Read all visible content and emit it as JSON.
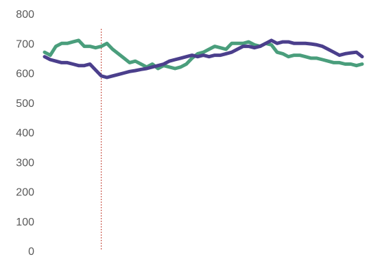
{
  "chart_data": {
    "type": "line",
    "title": "",
    "xlabel": "",
    "ylabel": "",
    "ylim": [
      0,
      800
    ],
    "yticks": [
      "0",
      "100",
      "200",
      "300",
      "400",
      "500",
      "600",
      "700",
      "800"
    ],
    "grid": false,
    "legend": "none",
    "reference_line": {
      "x_index": 10,
      "color": "#c0392b",
      "style": "dotted"
    },
    "series": [
      {
        "color": "#4a9e7c",
        "values": [
          670,
          660,
          690,
          700,
          700,
          705,
          710,
          690,
          690,
          685,
          690,
          700,
          680,
          665,
          650,
          635,
          640,
          630,
          620,
          630,
          615,
          625,
          620,
          615,
          620,
          630,
          650,
          665,
          670,
          680,
          690,
          685,
          680,
          700,
          700,
          700,
          705,
          695,
          690,
          700,
          695,
          670,
          665,
          655,
          660,
          660,
          655,
          650,
          650,
          645,
          640,
          635,
          635,
          630,
          630,
          625,
          630
        ]
      },
      {
        "color": "#4b3f8c",
        "values": [
          655,
          645,
          640,
          635,
          635,
          630,
          625,
          625,
          630,
          610,
          590,
          585,
          590,
          595,
          600,
          605,
          608,
          612,
          615,
          620,
          625,
          630,
          640,
          645,
          650,
          655,
          660,
          655,
          660,
          655,
          660,
          660,
          665,
          670,
          680,
          690,
          690,
          685,
          690,
          700,
          710,
          700,
          705,
          705,
          700,
          700,
          700,
          698,
          695,
          690,
          680,
          670,
          660,
          665,
          668,
          670,
          655
        ]
      }
    ]
  }
}
